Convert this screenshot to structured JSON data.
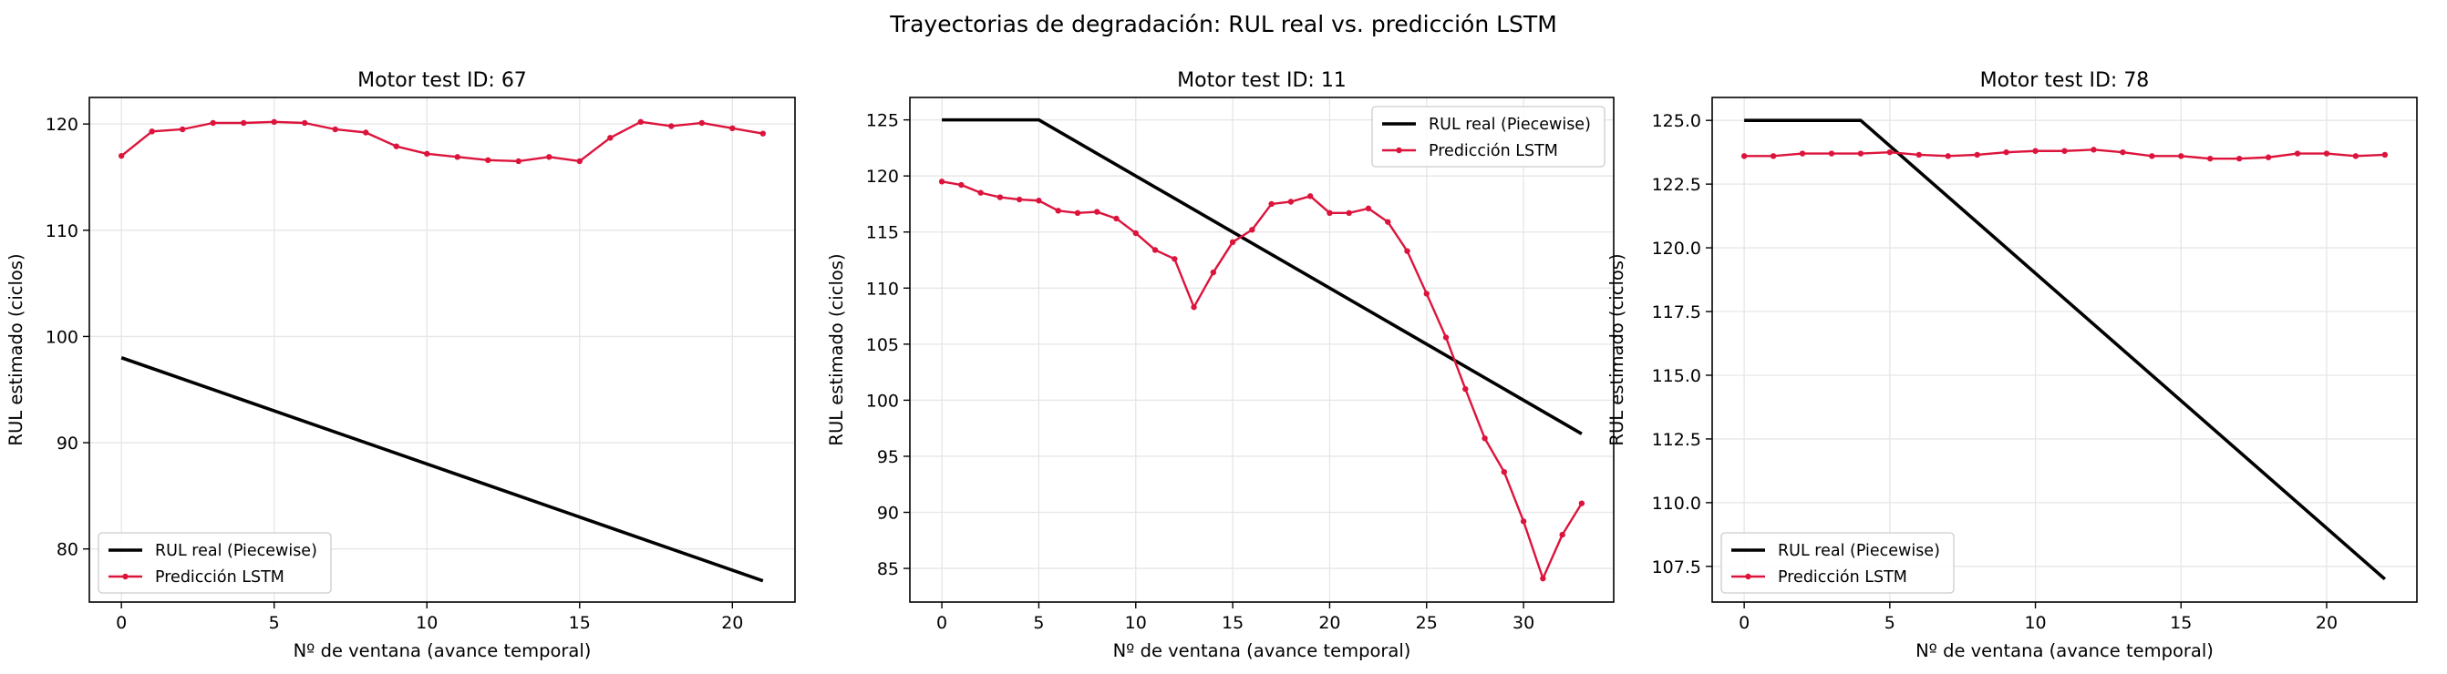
{
  "figure": {
    "suptitle": "Trayectorias de degradación: RUL real vs. predicción LSTM"
  },
  "colors": {
    "real": "#000000",
    "pred": "#dc143c",
    "grid": "#e6e6e6",
    "axes": "#000000"
  },
  "chart_data": [
    {
      "type": "line",
      "title": "Motor test ID: 67",
      "xlabel": "Nº de ventana (avance temporal)",
      "ylabel": "RUL estimado (ciclos)",
      "xlim": [
        -1.05,
        22.05
      ],
      "ylim": [
        75,
        122.5
      ],
      "xticks": [
        0,
        5,
        10,
        15,
        20
      ],
      "yticks": [
        80,
        90,
        100,
        110,
        120
      ],
      "ytick_labels": [
        "80",
        "90",
        "100",
        "110",
        "120"
      ],
      "grid": true,
      "legend": "lower-left",
      "series": [
        {
          "name": "RUL real (Piecewise)",
          "style": "line",
          "color": "#000000",
          "x": [
            0,
            21
          ],
          "y": [
            98,
            77
          ]
        },
        {
          "name": "Predicción LSTM",
          "style": "line-marker",
          "color": "#dc143c",
          "x": [
            0,
            1,
            2,
            3,
            4,
            5,
            6,
            7,
            8,
            9,
            10,
            11,
            12,
            13,
            14,
            15,
            16,
            17,
            18,
            19,
            20,
            21
          ],
          "y": [
            117.0,
            119.3,
            119.5,
            120.1,
            120.1,
            120.2,
            120.1,
            119.5,
            119.2,
            117.9,
            117.2,
            116.9,
            116.6,
            116.5,
            116.9,
            116.5,
            118.7,
            120.2,
            119.8,
            120.1,
            119.6,
            119.1
          ]
        }
      ]
    },
    {
      "type": "line",
      "title": "Motor test ID: 11",
      "xlabel": "Nº de ventana (avance temporal)",
      "ylabel": "RUL estimado (ciclos)",
      "xlim": [
        -1.65,
        34.65
      ],
      "ylim": [
        82,
        127
      ],
      "xticks": [
        0,
        5,
        10,
        15,
        20,
        25,
        30
      ],
      "yticks": [
        85,
        90,
        95,
        100,
        105,
        110,
        115,
        120,
        125
      ],
      "ytick_labels": [
        "85",
        "90",
        "95",
        "100",
        "105",
        "110",
        "115",
        "120",
        "125"
      ],
      "grid": true,
      "legend": "top-right",
      "series": [
        {
          "name": "RUL real (Piecewise)",
          "style": "line",
          "color": "#000000",
          "x": [
            0,
            5,
            33
          ],
          "y": [
            125,
            125,
            97
          ]
        },
        {
          "name": "Predicción LSTM",
          "style": "line-marker",
          "color": "#dc143c",
          "x": [
            0,
            1,
            2,
            3,
            4,
            5,
            6,
            7,
            8,
            9,
            10,
            11,
            12,
            13,
            14,
            15,
            16,
            17,
            18,
            19,
            20,
            21,
            22,
            23,
            24,
            25,
            26,
            27,
            28,
            29,
            30,
            31,
            32,
            33
          ],
          "y": [
            119.5,
            119.2,
            118.5,
            118.1,
            117.9,
            117.8,
            116.9,
            116.7,
            116.8,
            116.2,
            114.9,
            113.4,
            112.6,
            108.3,
            111.4,
            114.1,
            115.2,
            117.5,
            117.7,
            118.2,
            116.7,
            116.7,
            117.1,
            115.9,
            113.3,
            109.5,
            105.6,
            101.0,
            96.6,
            93.6,
            89.2,
            84.1,
            88.0,
            90.8
          ]
        }
      ]
    },
    {
      "type": "line",
      "title": "Motor test ID: 78",
      "xlabel": "Nº de ventana (avance temporal)",
      "ylabel": "RUL estimado (ciclos)",
      "xlim": [
        -1.1,
        23.1
      ],
      "ylim": [
        106.1,
        125.9
      ],
      "xticks": [
        0,
        5,
        10,
        15,
        20
      ],
      "yticks": [
        107.5,
        110.0,
        112.5,
        115.0,
        117.5,
        120.0,
        122.5,
        125.0
      ],
      "ytick_labels": [
        "107.5",
        "110.0",
        "112.5",
        "115.0",
        "117.5",
        "120.0",
        "122.5",
        "125.0"
      ],
      "grid": true,
      "legend": "lower-left",
      "series": [
        {
          "name": "RUL real (Piecewise)",
          "style": "line",
          "color": "#000000",
          "x": [
            0,
            4,
            22
          ],
          "y": [
            125,
            125,
            107
          ]
        },
        {
          "name": "Predicción LSTM",
          "style": "line-marker",
          "color": "#dc143c",
          "x": [
            0,
            1,
            2,
            3,
            4,
            5,
            6,
            7,
            8,
            9,
            10,
            11,
            12,
            13,
            14,
            15,
            16,
            17,
            18,
            19,
            20,
            21,
            22
          ],
          "y": [
            123.6,
            123.6,
            123.7,
            123.7,
            123.7,
            123.75,
            123.65,
            123.6,
            123.65,
            123.75,
            123.8,
            123.8,
            123.85,
            123.75,
            123.6,
            123.6,
            123.5,
            123.5,
            123.55,
            123.7,
            123.7,
            123.6,
            123.65
          ]
        }
      ]
    }
  ]
}
